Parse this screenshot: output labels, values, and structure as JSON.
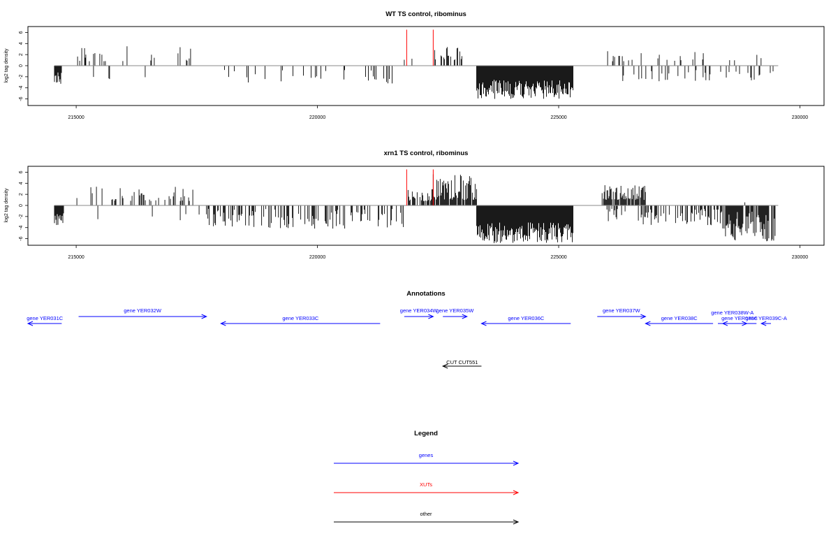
{
  "colors": {
    "genes": "#0000ff",
    "xuts": "#ff0000",
    "other": "#000000",
    "bars": "#000000",
    "baseline": "#888888",
    "marker": "#ff0000"
  },
  "chart_data": [
    {
      "type": "bar",
      "title": "WT TS control, ribominus",
      "ylabel": "log2 tag density",
      "xlim": [
        214000,
        230500
      ],
      "ylim": [
        -7,
        7
      ],
      "x_ticks": [
        215000,
        220000,
        225000,
        230000
      ],
      "x_tick_labels": [
        "215000",
        "220000",
        "225000",
        "230000"
      ],
      "y_ticks": [
        -6,
        -4,
        -2,
        0,
        2,
        4,
        6
      ],
      "y_tick_labels": [
        "-6",
        "-4",
        "-2",
        "0",
        "2",
        "4",
        "6"
      ],
      "marker_lines": [
        221850,
        222400
      ],
      "marker_height": 6.5,
      "baseline_range": [
        214550,
        229550
      ],
      "segments": [
        {
          "x0": 214550,
          "x1": 214700,
          "density": 0.9,
          "min": -3.5,
          "max": -1.0
        },
        {
          "x0": 215000,
          "x1": 215200,
          "density": 0.3,
          "min": 0.8,
          "max": 3.2
        },
        {
          "x0": 215200,
          "x1": 217500,
          "density": 0.12,
          "min": 0.8,
          "max": 3.5
        },
        {
          "x0": 215200,
          "x1": 217500,
          "density": 0.02,
          "min": -2.5,
          "max": -1.0
        },
        {
          "x0": 217800,
          "x1": 221700,
          "density": 0.1,
          "min": -3.2,
          "max": -0.5
        },
        {
          "x0": 221800,
          "x1": 222100,
          "density": 0.15,
          "min": 1.0,
          "max": 2.5
        },
        {
          "x0": 222400,
          "x1": 223000,
          "density": 0.35,
          "min": 1.0,
          "max": 3.5
        },
        {
          "x0": 223300,
          "x1": 225300,
          "density": 1.0,
          "min": -6.0,
          "max": -2.5
        },
        {
          "x0": 226000,
          "x1": 228200,
          "density": 0.12,
          "min": 0.8,
          "max": 3.0
        },
        {
          "x0": 226300,
          "x1": 228200,
          "density": 0.15,
          "min": -3.0,
          "max": -0.8
        },
        {
          "x0": 228300,
          "x1": 229500,
          "density": 0.15,
          "min": -2.8,
          "max": -0.8
        },
        {
          "x0": 228500,
          "x1": 229500,
          "density": 0.05,
          "min": 0.8,
          "max": 2.6
        }
      ]
    },
    {
      "type": "bar",
      "title": "xrn1 TS control, ribominus",
      "ylabel": "log2 tag density",
      "xlim": [
        214000,
        230500
      ],
      "ylim": [
        -7,
        7
      ],
      "x_ticks": [
        215000,
        220000,
        225000,
        230000
      ],
      "x_tick_labels": [
        "215000",
        "220000",
        "225000",
        "230000"
      ],
      "y_ticks": [
        -6,
        -4,
        -2,
        0,
        2,
        4,
        6
      ],
      "y_tick_labels": [
        "-6",
        "-4",
        "-2",
        "0",
        "2",
        "4",
        "6"
      ],
      "marker_lines": [
        221850,
        222400
      ],
      "marker_height": 6.5,
      "baseline_range": [
        214550,
        229550
      ],
      "segments": [
        {
          "x0": 214550,
          "x1": 214750,
          "density": 0.9,
          "min": -3.8,
          "max": -1.0
        },
        {
          "x0": 215000,
          "x1": 217700,
          "density": 0.2,
          "min": 0.8,
          "max": 3.4
        },
        {
          "x0": 215000,
          "x1": 217700,
          "density": 0.03,
          "min": -3.0,
          "max": -0.8
        },
        {
          "x0": 217700,
          "x1": 221800,
          "density": 0.4,
          "min": -4.2,
          "max": -0.5
        },
        {
          "x0": 221850,
          "x1": 222400,
          "density": 0.6,
          "min": 0.8,
          "max": 3.0
        },
        {
          "x0": 222400,
          "x1": 223300,
          "density": 0.9,
          "min": 1.0,
          "max": 5.8
        },
        {
          "x0": 223300,
          "x1": 225300,
          "density": 1.0,
          "min": -6.8,
          "max": -3.0
        },
        {
          "x0": 225900,
          "x1": 226800,
          "density": 0.8,
          "min": 1.0,
          "max": 3.8
        },
        {
          "x0": 226000,
          "x1": 226800,
          "density": 0.3,
          "min": -3.5,
          "max": -0.5
        },
        {
          "x0": 226800,
          "x1": 228400,
          "density": 0.4,
          "min": -3.8,
          "max": -0.5
        },
        {
          "x0": 228400,
          "x1": 229500,
          "density": 0.8,
          "min": -6.5,
          "max": -1.0
        },
        {
          "x0": 228700,
          "x1": 229500,
          "density": 0.05,
          "min": 0.5,
          "max": 1.5
        }
      ]
    }
  ],
  "annotations": {
    "title": "Annotations",
    "xlim": [
      214000,
      230500
    ],
    "features": [
      {
        "label": "gene YER031C",
        "x0": 214000,
        "x1": 214700,
        "row": 0,
        "strand": "-",
        "kind": "genes"
      },
      {
        "label": "gene YER032W",
        "x0": 215050,
        "x1": 217700,
        "row": 1,
        "strand": "+",
        "kind": "genes"
      },
      {
        "label": "gene YER033C",
        "x0": 218000,
        "x1": 221300,
        "row": 0,
        "strand": "-",
        "kind": "genes"
      },
      {
        "label": "gene YER034W",
        "x0": 221800,
        "x1": 222400,
        "row": 1,
        "strand": "+",
        "kind": "genes"
      },
      {
        "label": "gene YER035W",
        "x0": 222600,
        "x1": 223100,
        "row": 1,
        "strand": "+",
        "kind": "genes"
      },
      {
        "label": "gene YER036C",
        "x0": 223400,
        "x1": 225250,
        "row": 0,
        "strand": "-",
        "kind": "genes"
      },
      {
        "label": "gene YER037W",
        "x0": 225800,
        "x1": 226800,
        "row": 1,
        "strand": "+",
        "kind": "genes"
      },
      {
        "label": "gene YER038C",
        "x0": 226800,
        "x1": 228200,
        "row": 0,
        "strand": "-",
        "kind": "genes"
      },
      {
        "label": "gene YER038W-A",
        "x0": 228300,
        "x1": 228900,
        "row": 2,
        "strand": "+",
        "kind": "genes"
      },
      {
        "label": "gene YER039C",
        "x0": 228400,
        "x1": 229100,
        "row": 0,
        "strand": "-",
        "kind": "genes"
      },
      {
        "label": "gene YER039C-A",
        "x0": 229200,
        "x1": 229400,
        "row": 0,
        "strand": "-",
        "kind": "genes"
      },
      {
        "label": "CUT CUT551",
        "x0": 222600,
        "x1": 223400,
        "row": 3,
        "strand": "-",
        "kind": "other"
      }
    ]
  },
  "legend": {
    "title": "Legend",
    "items": [
      {
        "label": "genes",
        "kind": "genes"
      },
      {
        "label": "XUTs",
        "kind": "xuts"
      },
      {
        "label": "other",
        "kind": "other"
      }
    ]
  }
}
